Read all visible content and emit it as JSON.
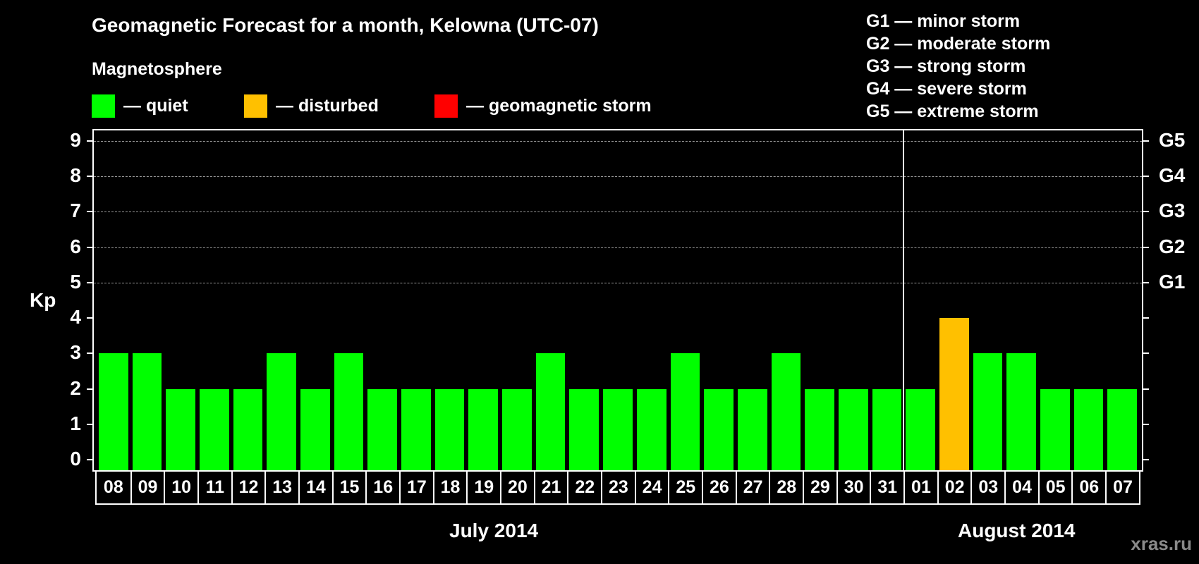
{
  "title": "Geomagnetic Forecast for a month, Kelowna (UTC-07)",
  "subtitle": "Magnetosphere",
  "legend": [
    {
      "label": "— quiet",
      "color": "#00ff00"
    },
    {
      "label": "— disturbed",
      "color": "#ffc000"
    },
    {
      "label": "— geomagnetic storm",
      "color": "#ff0000"
    }
  ],
  "g_scale_legend": [
    "G1 — minor storm",
    "G2 — moderate storm",
    "G3 — strong storm",
    "G4 — severe storm",
    "G5 — extreme storm"
  ],
  "y_axis": {
    "label": "Kp",
    "ticks": [
      "0",
      "1",
      "2",
      "3",
      "4",
      "5",
      "6",
      "7",
      "8",
      "9"
    ],
    "right_ticks": {
      "5": "G1",
      "6": "G2",
      "7": "G3",
      "8": "G4",
      "9": "G5"
    }
  },
  "months": [
    {
      "label": "July 2014"
    },
    {
      "label": "August 2014"
    }
  ],
  "watermark": "xras.ru",
  "colors": {
    "quiet": "#00ff00",
    "disturbed": "#ffc000",
    "storm": "#ff0000",
    "background": "#000000",
    "grid": "#999999"
  },
  "chart_data": {
    "type": "bar",
    "title": "Geomagnetic Forecast for a month, Kelowna (UTC-07)",
    "xlabel": "July 2014 / August 2014",
    "ylabel": "Kp",
    "ylim": [
      0,
      9
    ],
    "grid": "dashed horizontal at Kp 5-9",
    "legend_position": "top",
    "categories": [
      "08",
      "09",
      "10",
      "11",
      "12",
      "13",
      "14",
      "15",
      "16",
      "17",
      "18",
      "19",
      "20",
      "21",
      "22",
      "23",
      "24",
      "25",
      "26",
      "27",
      "28",
      "29",
      "30",
      "31",
      "01",
      "02",
      "03",
      "04",
      "05",
      "06",
      "07"
    ],
    "months": [
      "Jul",
      "Jul",
      "Jul",
      "Jul",
      "Jul",
      "Jul",
      "Jul",
      "Jul",
      "Jul",
      "Jul",
      "Jul",
      "Jul",
      "Jul",
      "Jul",
      "Jul",
      "Jul",
      "Jul",
      "Jul",
      "Jul",
      "Jul",
      "Jul",
      "Jul",
      "Jul",
      "Jul",
      "Aug",
      "Aug",
      "Aug",
      "Aug",
      "Aug",
      "Aug",
      "Aug"
    ],
    "values": [
      3,
      3,
      2,
      2,
      2,
      3,
      2,
      3,
      2,
      2,
      2,
      2,
      2,
      3,
      2,
      2,
      2,
      3,
      2,
      2,
      3,
      2,
      2,
      2,
      2,
      4,
      3,
      3,
      2,
      2,
      2
    ],
    "status": [
      "quiet",
      "quiet",
      "quiet",
      "quiet",
      "quiet",
      "quiet",
      "quiet",
      "quiet",
      "quiet",
      "quiet",
      "quiet",
      "quiet",
      "quiet",
      "quiet",
      "quiet",
      "quiet",
      "quiet",
      "quiet",
      "quiet",
      "quiet",
      "quiet",
      "quiet",
      "quiet",
      "quiet",
      "quiet",
      "disturbed",
      "quiet",
      "quiet",
      "quiet",
      "quiet",
      "quiet"
    ],
    "right_axis": {
      "5": "G1",
      "6": "G2",
      "7": "G3",
      "8": "G4",
      "9": "G5"
    }
  }
}
